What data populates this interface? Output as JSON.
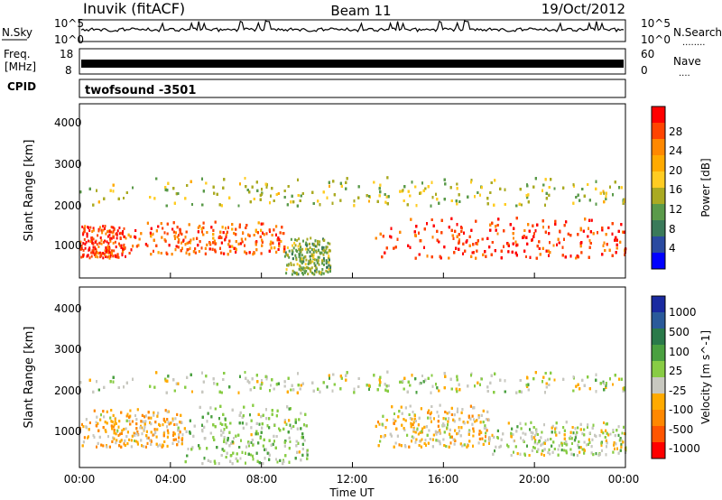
{
  "header": {
    "station": "Inuvik (fitACF)",
    "beam": "Beam 11",
    "date": "19/Oct/2012"
  },
  "strips": {
    "nsky": {
      "label": "N.Sky",
      "ticks": [
        "10^5",
        "10^0"
      ],
      "right_ticks": [
        "10^5",
        "10^0"
      ],
      "right_label": "N.Search",
      "legend_marker": "........"
    },
    "freq": {
      "label_line1": "Freq.",
      "label_line2": "[MHz]",
      "ticks": [
        "18",
        "8"
      ],
      "right_ticks": [
        "60",
        "0"
      ],
      "right_label": "Nave",
      "legend_marker": "...."
    },
    "cpid": {
      "label": "CPID",
      "value": "twofsound -3501"
    }
  },
  "power_panel": {
    "ylabel": "Slant Range [km]",
    "yticks": [
      "4000",
      "3000",
      "2000",
      "1000"
    ],
    "colorbar": {
      "label": "Power [dB]",
      "ticks": [
        "28",
        "24",
        "20",
        "16",
        "12",
        "8",
        "4"
      ],
      "colors": [
        "#ff0000",
        "#ff4400",
        "#ff8800",
        "#ffaa00",
        "#ffcc22",
        "#aaaa22",
        "#5a9a4a",
        "#3a7a5a",
        "#2a4aa0",
        "#0000ff"
      ]
    }
  },
  "velocity_panel": {
    "ylabel": "Slant Range [km]",
    "yticks": [
      "4000",
      "3000",
      "2000",
      "1000"
    ],
    "colorbar": {
      "label": "Velocity [m s^-1]",
      "ticks": [
        "1000",
        "500",
        "100",
        "25",
        "-25",
        "-100",
        "-500",
        "-1000"
      ],
      "colors": [
        "#1a2aa0",
        "#2a5a9a",
        "#2a7a4a",
        "#4aa040",
        "#88cc44",
        "#c8c8c0",
        "#ffaa00",
        "#ff8800",
        "#ff5500",
        "#ff0000"
      ]
    }
  },
  "xaxis": {
    "ticks": [
      "00:00",
      "04:00",
      "08:00",
      "12:00",
      "16:00",
      "20:00",
      "00:00"
    ],
    "label": "Time UT"
  },
  "chart_data": [
    {
      "type": "heatmap",
      "title": "Beam 11",
      "xlabel": "Time UT",
      "ylabel": "Slant Range [km]",
      "xlim": [
        "00:00",
        "24:00"
      ],
      "ylim": [
        180,
        4500
      ],
      "colorbar_label": "Power [dB]",
      "colorbar_range": [
        0,
        30
      ],
      "features": [
        {
          "time_start": "00:00",
          "time_end": "02:00",
          "range_km": [
            700,
            1500
          ],
          "level_dB": 28
        },
        {
          "time_start": "02:00",
          "time_end": "09:00",
          "range_km": [
            800,
            1600
          ],
          "level_dB": 26
        },
        {
          "time_start": "09:00",
          "time_end": "11:00",
          "range_km": [
            300,
            1200
          ],
          "level_dB": 12
        },
        {
          "time_start": "13:00",
          "time_end": "24:00",
          "range_km": [
            700,
            1700
          ],
          "level_dB": 28
        },
        {
          "time_start": "00:00",
          "time_end": "24:00",
          "range_km": [
            2000,
            2700
          ],
          "level_dB": 14
        }
      ]
    },
    {
      "type": "heatmap",
      "title": "Beam 11",
      "xlabel": "Time UT",
      "ylabel": "Slant Range [km]",
      "xlim": [
        "00:00",
        "24:00"
      ],
      "ylim": [
        180,
        4500
      ],
      "colorbar_label": "Velocity [m s^-1]",
      "colorbar_range": [
        -1000,
        1000
      ],
      "features": [
        {
          "time_start": "00:00",
          "time_end": "04:30",
          "range_km": [
            700,
            1600
          ],
          "velocity": -300
        },
        {
          "time_start": "04:30",
          "time_end": "10:00",
          "range_km": [
            300,
            1700
          ],
          "velocity": 100
        },
        {
          "time_start": "13:00",
          "time_end": "18:00",
          "range_km": [
            700,
            1700
          ],
          "velocity": -200
        },
        {
          "time_start": "18:00",
          "time_end": "24:00",
          "range_km": [
            500,
            1300
          ],
          "velocity": 0
        },
        {
          "time_start": "00:00",
          "time_end": "24:00",
          "range_km": [
            2000,
            2500
          ],
          "velocity": 0
        }
      ]
    }
  ]
}
